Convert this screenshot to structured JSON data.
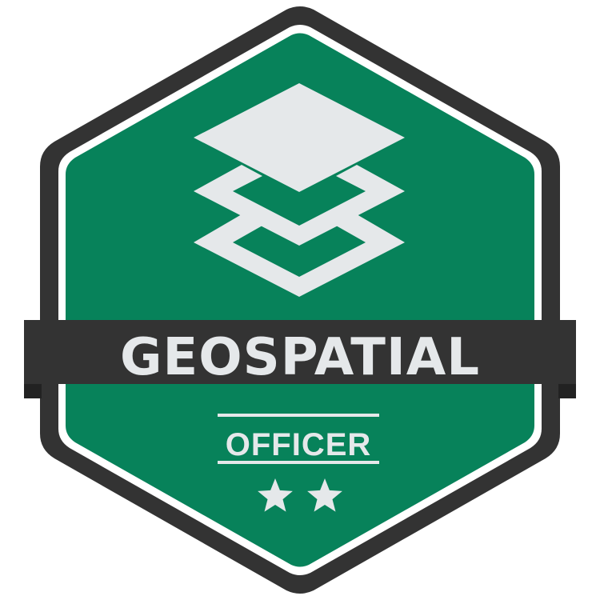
{
  "badge": {
    "title": "GEOSPATIAL",
    "subtitle": "OFFICER",
    "stars": 2,
    "icon": "map-layers-icon",
    "colors": {
      "outer_frame": "#333333",
      "inner_outline": "#ffffff",
      "field": "#07825a",
      "banner": "#333333",
      "banner_fold": "#222222",
      "text": "#e5e8ea",
      "icon": "#e5e8ea"
    }
  }
}
